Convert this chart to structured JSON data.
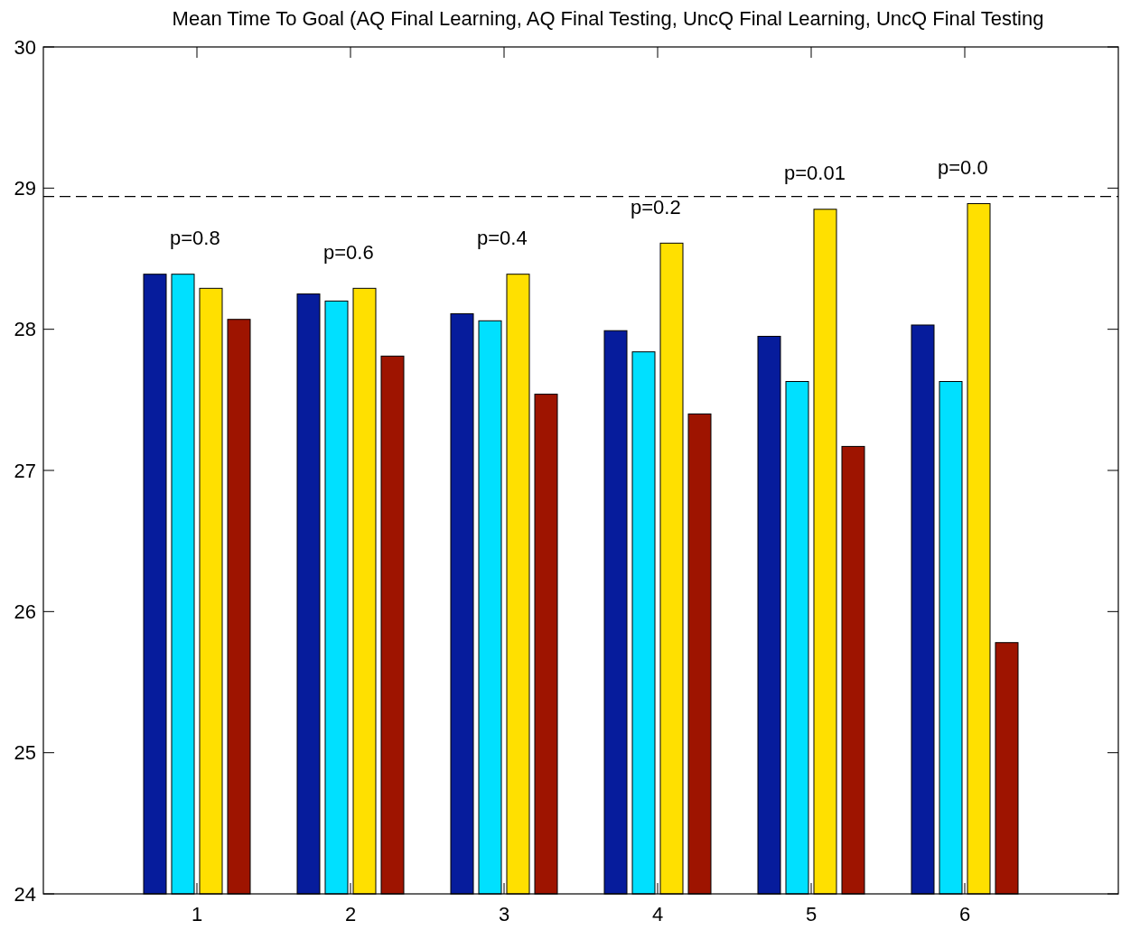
{
  "chart_data": {
    "type": "bar",
    "title": "Mean Time To Goal (AQ Final Learning, AQ Final Testing, UncQ Final Learning, UncQ Final Testing",
    "x": [
      1,
      2,
      3,
      4,
      5,
      6
    ],
    "xlim": [
      0,
      7
    ],
    "xticks": [
      1,
      2,
      3,
      4,
      5,
      6
    ],
    "ylim": [
      24,
      30
    ],
    "yticks": [
      24,
      25,
      26,
      27,
      28,
      29,
      30
    ],
    "series": [
      {
        "color": "#061c9c",
        "values": [
          28.39,
          28.25,
          28.11,
          27.99,
          27.95,
          28.03
        ]
      },
      {
        "color": "#00e0ff",
        "values": [
          28.39,
          28.2,
          28.06,
          27.84,
          27.63,
          27.63
        ]
      },
      {
        "color": "#ffe000",
        "values": [
          28.29,
          28.29,
          28.39,
          28.61,
          28.85,
          28.89
        ]
      },
      {
        "color": "#9e1400",
        "values": [
          28.07,
          27.81,
          27.54,
          27.4,
          27.17,
          25.78
        ]
      }
    ],
    "ref_lines": [
      {
        "axis": "y",
        "value": 28.94,
        "line_style": "dashed",
        "color": "#000000"
      }
    ],
    "annotations": [
      "p=0.8",
      "p=0.6",
      "p=0.4",
      "p=0.2",
      "p=0.01",
      "p=0.0"
    ],
    "grid": false
  }
}
